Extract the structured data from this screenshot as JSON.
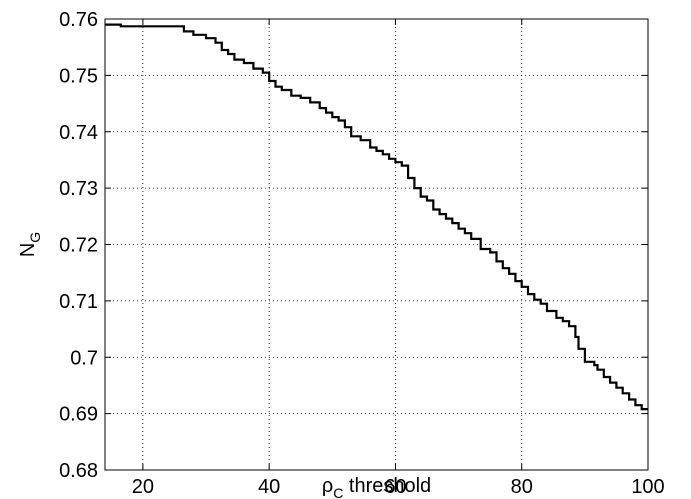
{
  "chart_data": {
    "type": "line",
    "xlabel": {
      "symbol": "ρ",
      "subscript": "C",
      "rest": " threshold"
    },
    "ylabel": {
      "symbol": "N",
      "subscript": "G"
    },
    "xlim": [
      14,
      100
    ],
    "ylim": [
      0.68,
      0.76
    ],
    "grid": true,
    "grid_style": "dotted",
    "line_color": "#000000",
    "xticks": [
      {
        "value": 20,
        "label": "20"
      },
      {
        "value": 40,
        "label": "40"
      },
      {
        "value": 60,
        "label": "60"
      },
      {
        "value": 80,
        "label": "80"
      },
      {
        "value": 100,
        "label": "100"
      }
    ],
    "yticks": [
      {
        "value": 0.68,
        "label": "0.68"
      },
      {
        "value": 0.69,
        "label": "0.69"
      },
      {
        "value": 0.7,
        "label": "0.7"
      },
      {
        "value": 0.71,
        "label": "0.71"
      },
      {
        "value": 0.72,
        "label": "0.72"
      },
      {
        "value": 0.73,
        "label": "0.73"
      },
      {
        "value": 0.74,
        "label": "0.74"
      },
      {
        "value": 0.75,
        "label": "0.75"
      },
      {
        "value": 0.76,
        "label": "0.76"
      }
    ],
    "series": [
      {
        "style": "step",
        "x": [
          14,
          16.5,
          25.5,
          26.5,
          28,
          30,
          31.5,
          32.5,
          33.5,
          34.5,
          36,
          37.5,
          39,
          40,
          41,
          42,
          43.5,
          45,
          46.5,
          48,
          49,
          50,
          51,
          52,
          53,
          54.5,
          56,
          57,
          58,
          59,
          60,
          61,
          62,
          63,
          64,
          65,
          66,
          67,
          68,
          69,
          70,
          71,
          72,
          73.5,
          75,
          76,
          77,
          78,
          79,
          80,
          81,
          82,
          83,
          84,
          85.5,
          86.5,
          87.5,
          88.5,
          89,
          90,
          91.5,
          92,
          93,
          94,
          95,
          96,
          97,
          98,
          99,
          100
        ],
        "y": [
          0.759,
          0.7587,
          0.7587,
          0.7578,
          0.7572,
          0.7566,
          0.7558,
          0.7545,
          0.7538,
          0.7528,
          0.7522,
          0.7512,
          0.7505,
          0.749,
          0.748,
          0.7474,
          0.7464,
          0.746,
          0.7452,
          0.7442,
          0.7434,
          0.7426,
          0.742,
          0.7408,
          0.7392,
          0.7385,
          0.7372,
          0.7366,
          0.736,
          0.7352,
          0.7346,
          0.734,
          0.7318,
          0.73,
          0.7285,
          0.7278,
          0.7262,
          0.7254,
          0.7246,
          0.7238,
          0.7228,
          0.722,
          0.721,
          0.7192,
          0.7186,
          0.717,
          0.7158,
          0.7148,
          0.7135,
          0.7125,
          0.7112,
          0.7102,
          0.7095,
          0.7082,
          0.707,
          0.7064,
          0.7055,
          0.7036,
          0.7015,
          0.6992,
          0.6986,
          0.6978,
          0.6965,
          0.6955,
          0.6946,
          0.6936,
          0.6925,
          0.6915,
          0.6908,
          0.6908
        ]
      }
    ]
  }
}
